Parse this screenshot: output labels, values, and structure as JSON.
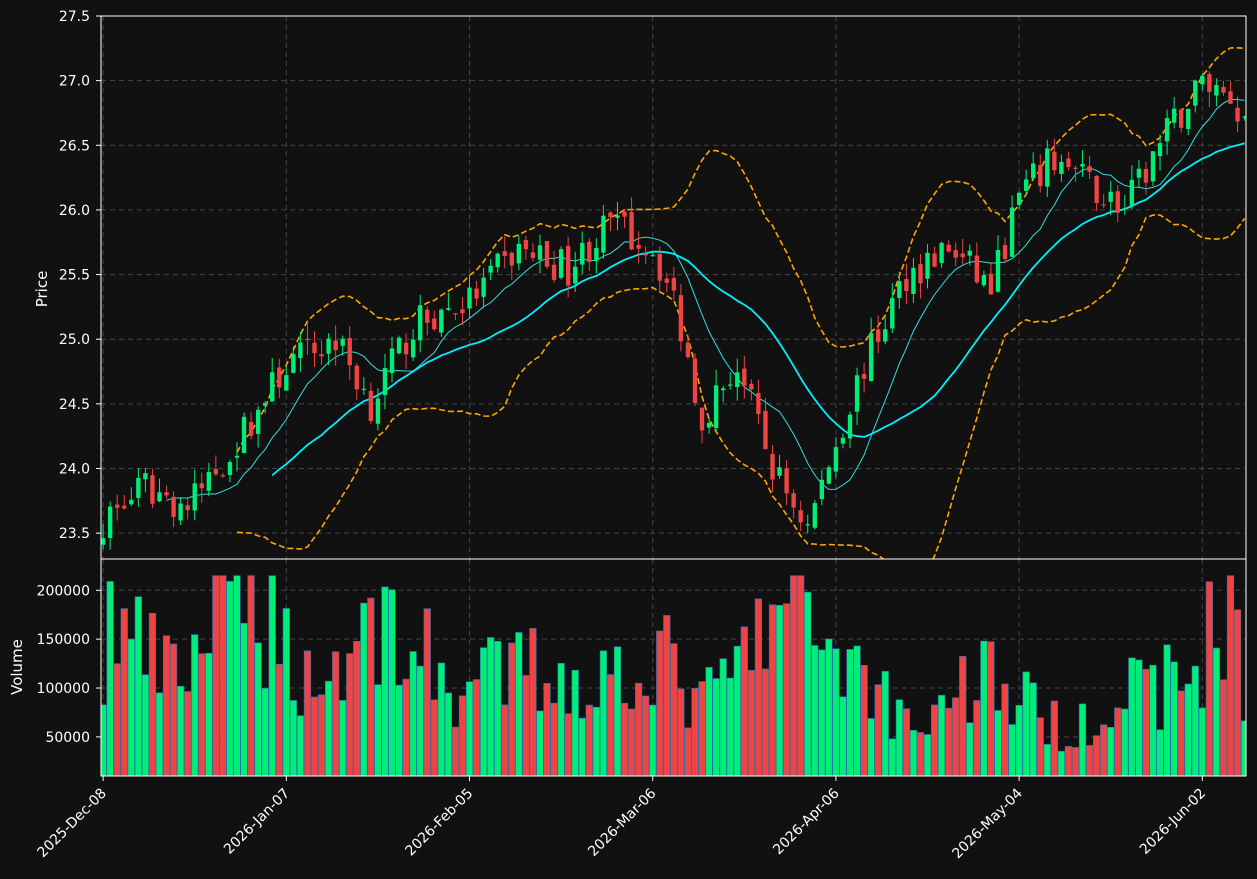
{
  "chart_data": {
    "type": "candlestick",
    "panels": [
      "price",
      "volume"
    ],
    "colors": {
      "background": "#111111",
      "up": "#00ee77",
      "down": "#ee4444",
      "bollinger": "#ffa500",
      "sma_short": "#33dddd",
      "sma_long": "#00eeff",
      "grid": "#444444",
      "axis": "#ffffff"
    },
    "price_panel": {
      "ylabel": "Price",
      "ylim": [
        23.3,
        27.5
      ],
      "yticks": [
        "23.5",
        "24.0",
        "24.5",
        "25.0",
        "25.5",
        "26.0",
        "26.5",
        "27.0",
        "27.5"
      ],
      "grid": true
    },
    "volume_panel": {
      "ylabel": "Volume",
      "ylim": [
        10000,
        232000
      ],
      "yticks": [
        "50000",
        "100000",
        "150000",
        "200000"
      ],
      "grid": true
    },
    "xticks": [
      "2025-Dec-08",
      "2026-Jan-07",
      "2026-Feb-05",
      "2026-Mar-06",
      "2026-Apr-06",
      "2026-May-04",
      "2026-Jun-02"
    ],
    "xtick_index": [
      0,
      26,
      52,
      78,
      104,
      130,
      156
    ],
    "n_bars": 163,
    "price_anchors": [
      [
        0,
        23.6
      ],
      [
        6,
        23.85
      ],
      [
        12,
        23.7
      ],
      [
        19,
        24.2
      ],
      [
        26,
        24.8
      ],
      [
        33,
        25.0
      ],
      [
        38,
        24.5
      ],
      [
        44,
        25.1
      ],
      [
        52,
        25.3
      ],
      [
        59,
        25.7
      ],
      [
        66,
        25.55
      ],
      [
        72,
        25.9
      ],
      [
        78,
        25.7
      ],
      [
        81,
        25.3
      ],
      [
        85,
        24.4
      ],
      [
        90,
        24.8
      ],
      [
        95,
        24.0
      ],
      [
        100,
        23.55
      ],
      [
        104,
        24.2
      ],
      [
        108,
        24.8
      ],
      [
        114,
        25.5
      ],
      [
        120,
        25.7
      ],
      [
        126,
        25.4
      ],
      [
        130,
        26.1
      ],
      [
        135,
        26.4
      ],
      [
        140,
        26.2
      ],
      [
        145,
        26.0
      ],
      [
        150,
        26.5
      ],
      [
        156,
        27.0
      ],
      [
        160,
        26.9
      ],
      [
        162,
        26.7
      ]
    ],
    "volume_anchors": [
      [
        0,
        112000
      ],
      [
        1,
        170000
      ],
      [
        10,
        105000
      ],
      [
        20,
        215000
      ],
      [
        30,
        100000
      ],
      [
        40,
        175000
      ],
      [
        50,
        95000
      ],
      [
        60,
        120000
      ],
      [
        70,
        105000
      ],
      [
        78,
        140000
      ],
      [
        85,
        80000
      ],
      [
        98,
        192000
      ],
      [
        108,
        115000
      ],
      [
        115,
        60000
      ],
      [
        125,
        120000
      ],
      [
        135,
        60000
      ],
      [
        145,
        90000
      ],
      [
        155,
        115000
      ],
      [
        160,
        215000
      ],
      [
        162,
        95000
      ]
    ],
    "sma_short_window": 10,
    "sma_long_window": 25,
    "bollinger_window": 20,
    "bollinger_k": 2
  }
}
